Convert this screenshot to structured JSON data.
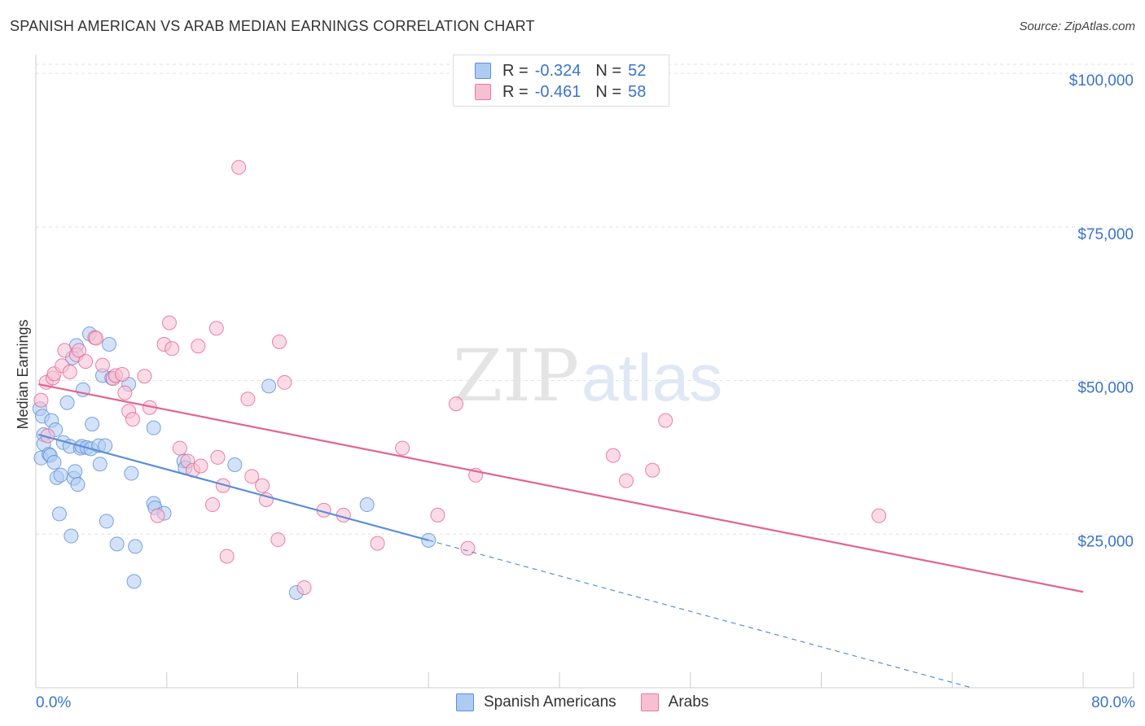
{
  "header": {
    "title": "SPANISH AMERICAN VS ARAB MEDIAN EARNINGS CORRELATION CHART",
    "source": "Source: ZipAtlas.com"
  },
  "watermark": {
    "zip": "ZIP",
    "atlas": "atlas"
  },
  "legend": {
    "r_label": "R =",
    "n_label": "N =",
    "series": [
      {
        "name": "Spanish Americans",
        "r": "-0.324",
        "n": "52",
        "fill": "#aecbf3",
        "stroke": "#5b8fd9"
      },
      {
        "name": "Arabs",
        "r": "-0.461",
        "n": "58",
        "fill": "#f7c0d2",
        "stroke": "#e6789e"
      }
    ]
  },
  "chart_data": {
    "type": "scatter",
    "title": "SPANISH AMERICAN VS ARAB MEDIAN EARNINGS CORRELATION CHART",
    "xlabel": "",
    "ylabel": "Median Earnings",
    "xlim": [
      0,
      80
    ],
    "ylim": [
      0,
      102000
    ],
    "x_tick_labels": [
      {
        "value": 0,
        "label": "0.0%"
      },
      {
        "value": 80,
        "label": "80.0%"
      }
    ],
    "y_ticks": [
      {
        "value": 25000,
        "label": "$25,000"
      },
      {
        "value": 50000,
        "label": "$50,000"
      },
      {
        "value": 75000,
        "label": "$75,000"
      },
      {
        "value": 100000,
        "label": "$100,000"
      }
    ],
    "grid": true,
    "series": [
      {
        "name": "Spanish Americans",
        "color": "#5b8fd9",
        "fill": "#aecbf3",
        "trend": {
          "x0": 0.2,
          "y0": 41200,
          "x1": 30.0,
          "y1": 24000,
          "x_end": 71.5,
          "y_end": 0
        },
        "points": [
          [
            0.3,
            45400
          ],
          [
            0.5,
            44200
          ],
          [
            0.6,
            41200
          ],
          [
            0.4,
            37400
          ],
          [
            0.6,
            39700
          ],
          [
            1.0,
            38000
          ],
          [
            1.1,
            37800
          ],
          [
            1.2,
            43500
          ],
          [
            1.4,
            36700
          ],
          [
            1.5,
            42000
          ],
          [
            1.6,
            34200
          ],
          [
            1.8,
            28300
          ],
          [
            1.9,
            34600
          ],
          [
            2.1,
            39900
          ],
          [
            2.4,
            46400
          ],
          [
            2.6,
            39300
          ],
          [
            2.8,
            53700
          ],
          [
            2.7,
            24700
          ],
          [
            2.9,
            34100
          ],
          [
            3.0,
            35200
          ],
          [
            3.1,
            55700
          ],
          [
            3.2,
            33100
          ],
          [
            3.4,
            39000
          ],
          [
            3.5,
            39300
          ],
          [
            3.6,
            48500
          ],
          [
            3.9,
            39100
          ],
          [
            4.1,
            57600
          ],
          [
            4.2,
            38900
          ],
          [
            4.3,
            42900
          ],
          [
            4.8,
            39400
          ],
          [
            4.9,
            36400
          ],
          [
            5.1,
            50800
          ],
          [
            5.3,
            39400
          ],
          [
            5.4,
            27100
          ],
          [
            5.6,
            55900
          ],
          [
            5.8,
            50400
          ],
          [
            6.2,
            23400
          ],
          [
            7.1,
            49400
          ],
          [
            7.3,
            34900
          ],
          [
            7.5,
            17300
          ],
          [
            7.6,
            23000
          ],
          [
            9.0,
            42300
          ],
          [
            9.0,
            30000
          ],
          [
            9.1,
            29300
          ],
          [
            9.8,
            28400
          ],
          [
            11.3,
            36900
          ],
          [
            11.4,
            35800
          ],
          [
            15.2,
            36300
          ],
          [
            17.8,
            49100
          ],
          [
            19.9,
            15500
          ],
          [
            25.3,
            29800
          ],
          [
            30.0,
            24000
          ]
        ]
      },
      {
        "name": "Arabs",
        "color": "#e36490",
        "fill": "#f7c0d2",
        "trend": {
          "x0": 0.2,
          "y0": 49400,
          "x1": 80.0,
          "y1": 15600
        },
        "points": [
          [
            0.4,
            46800
          ],
          [
            0.8,
            49700
          ],
          [
            0.9,
            41000
          ],
          [
            1.3,
            50400
          ],
          [
            1.4,
            51100
          ],
          [
            2.0,
            52400
          ],
          [
            2.2,
            54900
          ],
          [
            2.6,
            51400
          ],
          [
            3.1,
            54200
          ],
          [
            3.3,
            54900
          ],
          [
            3.8,
            53100
          ],
          [
            4.5,
            57000
          ],
          [
            4.6,
            56900
          ],
          [
            5.1,
            52500
          ],
          [
            5.9,
            50300
          ],
          [
            6.1,
            50800
          ],
          [
            6.6,
            51000
          ],
          [
            6.8,
            48000
          ],
          [
            7.1,
            45000
          ],
          [
            7.4,
            43700
          ],
          [
            8.3,
            50700
          ],
          [
            8.7,
            45600
          ],
          [
            9.3,
            28000
          ],
          [
            9.8,
            55900
          ],
          [
            10.2,
            59400
          ],
          [
            10.4,
            55200
          ],
          [
            11.0,
            39000
          ],
          [
            11.6,
            36900
          ],
          [
            12.0,
            35400
          ],
          [
            12.4,
            55600
          ],
          [
            12.6,
            36100
          ],
          [
            13.5,
            29800
          ],
          [
            13.8,
            58500
          ],
          [
            13.9,
            37500
          ],
          [
            14.3,
            32900
          ],
          [
            14.6,
            21400
          ],
          [
            15.5,
            84700
          ],
          [
            16.2,
            47000
          ],
          [
            16.5,
            34400
          ],
          [
            17.3,
            32900
          ],
          [
            17.6,
            30600
          ],
          [
            18.5,
            24100
          ],
          [
            18.6,
            56300
          ],
          [
            19.0,
            49700
          ],
          [
            20.5,
            16300
          ],
          [
            22.0,
            28900
          ],
          [
            23.5,
            28100
          ],
          [
            26.1,
            23500
          ],
          [
            28.0,
            39000
          ],
          [
            30.7,
            28100
          ],
          [
            32.1,
            46200
          ],
          [
            33.0,
            22700
          ],
          [
            33.6,
            34600
          ],
          [
            44.1,
            37800
          ],
          [
            45.1,
            33700
          ],
          [
            47.1,
            35400
          ],
          [
            48.1,
            43500
          ],
          [
            64.4,
            28000
          ]
        ]
      }
    ]
  }
}
